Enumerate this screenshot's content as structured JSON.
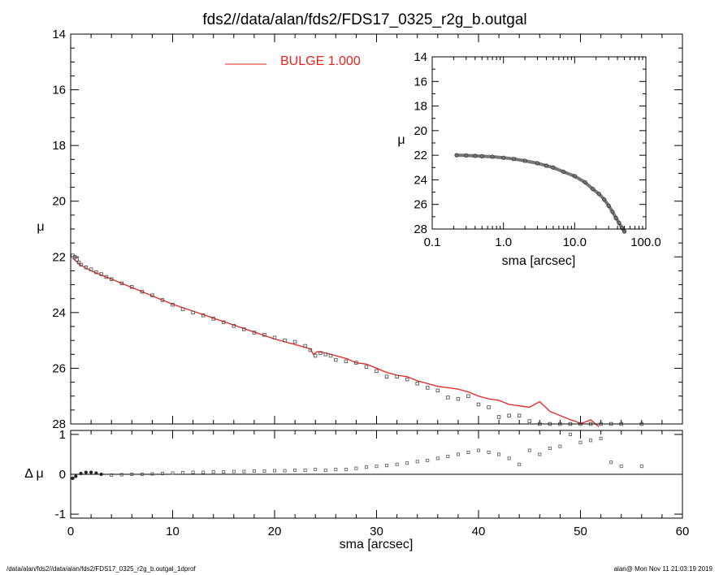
{
  "title": "fds2//data/alan/fds2/FDS17_0325_r2g_b.outgal",
  "footer": {
    "left": "/data/alan/fds2//data/alan/fds2/FDS17_0325_r2g_b.outgal_1dprof",
    "right": "alan@  Mon Nov 11 21:03:19 2019"
  },
  "colors": {
    "model": "#e8231e",
    "data": "#555555",
    "axes": "#000000"
  },
  "chart_data": [
    {
      "id": "main",
      "type": "scatter",
      "xlabel": "sma [arcsec]",
      "ylabel": "μ",
      "xlim": [
        0,
        60
      ],
      "ylim": [
        28,
        14
      ],
      "y_inverted": true,
      "xticks": [
        "0",
        "10",
        "20",
        "30",
        "40",
        "50",
        "60"
      ],
      "yticks": [
        "14",
        "16",
        "18",
        "20",
        "22",
        "24",
        "26",
        "28"
      ],
      "legend": {
        "label": "BULGE  1.000",
        "placement": "top-left",
        "color": "#e8231e"
      },
      "series": [
        {
          "name": "BULGE  1.000",
          "kind": "line",
          "color": "#e8231e",
          "x": [
            0.2,
            1,
            2,
            3,
            4,
            5,
            6,
            8,
            10,
            12,
            14,
            16,
            18,
            20,
            22,
            23.5,
            23.8,
            24.2,
            25,
            26,
            27,
            28,
            29,
            30,
            31,
            32,
            33,
            34,
            35,
            36,
            37,
            38,
            39,
            40,
            41,
            42,
            43,
            44,
            45,
            46,
            47,
            48,
            49,
            49.5,
            50,
            51,
            51.8
          ],
          "y": [
            22.05,
            22.3,
            22.5,
            22.65,
            22.8,
            22.95,
            23.1,
            23.4,
            23.7,
            23.95,
            24.2,
            24.45,
            24.7,
            24.95,
            25.15,
            25.3,
            25.5,
            25.4,
            25.45,
            25.55,
            25.65,
            25.8,
            25.85,
            26.0,
            26.15,
            26.25,
            26.3,
            26.45,
            26.55,
            26.65,
            26.7,
            26.75,
            26.85,
            27.0,
            27.1,
            27.15,
            27.3,
            27.35,
            27.4,
            27.2,
            27.55,
            27.7,
            27.85,
            27.9,
            28.0,
            27.85,
            28.1
          ]
        },
        {
          "name": "",
          "kind": "points",
          "color": "#555555",
          "x": [
            0.2,
            0.4,
            0.6,
            0.8,
            1.0,
            1.5,
            2,
            2.5,
            3,
            3.5,
            4,
            5,
            6,
            7,
            8,
            9,
            10,
            11,
            12,
            13,
            14,
            15,
            16,
            17,
            18,
            19,
            20,
            21,
            22,
            23,
            23.5,
            24,
            24.5,
            25,
            25.5,
            26,
            27,
            28,
            29,
            30,
            31,
            32,
            33,
            34,
            35,
            36,
            37,
            38,
            39,
            40,
            41,
            42,
            43,
            44,
            45,
            46,
            47,
            48,
            49,
            50,
            51,
            52,
            53,
            54,
            56
          ],
          "y": [
            21.95,
            22.0,
            22.1,
            22.2,
            22.28,
            22.38,
            22.45,
            22.55,
            22.62,
            22.72,
            22.8,
            22.95,
            23.08,
            23.25,
            23.38,
            23.55,
            23.72,
            23.88,
            24.0,
            24.1,
            24.22,
            24.35,
            24.48,
            24.6,
            24.72,
            24.8,
            24.9,
            25.0,
            25.05,
            25.2,
            25.35,
            25.55,
            25.45,
            25.5,
            25.55,
            25.7,
            25.75,
            25.8,
            25.95,
            26.1,
            26.3,
            26.3,
            26.4,
            26.55,
            26.7,
            26.8,
            27.05,
            27.1,
            27.0,
            27.3,
            27.4,
            27.75,
            27.7,
            27.7,
            27.9,
            28.0,
            28.0,
            28.0,
            28.0,
            28.0,
            28.0,
            28.0,
            28.0,
            28.0,
            28.0
          ]
        }
      ]
    },
    {
      "id": "residual",
      "type": "scatter",
      "xlabel": "sma [arcsec]",
      "ylabel": "Δ μ",
      "xlim": [
        0,
        60
      ],
      "ylim": [
        -1.1,
        1.1
      ],
      "yticks": [
        "-1",
        "0",
        "1"
      ],
      "series": [
        {
          "name": "",
          "kind": "points",
          "color": "#555555",
          "x": [
            0.2,
            0.5,
            1.0,
            1.5,
            2.0,
            2.5,
            3,
            4,
            5,
            6,
            7,
            8,
            9,
            10,
            11,
            12,
            13,
            14,
            15,
            16,
            17,
            18,
            19,
            20,
            21,
            22,
            23,
            24,
            25,
            26,
            27,
            28,
            29,
            30,
            31,
            32,
            33,
            34,
            35,
            36,
            37,
            38,
            39,
            40,
            41,
            42,
            43,
            44,
            45,
            46,
            47,
            48,
            49,
            50,
            51,
            52,
            53,
            54,
            56
          ],
          "y": [
            -0.1,
            -0.05,
            0.02,
            0.05,
            0.05,
            0.03,
            0.0,
            -0.02,
            -0.01,
            0.0,
            0.0,
            0.01,
            0.02,
            0.03,
            0.04,
            0.05,
            0.05,
            0.06,
            0.06,
            0.07,
            0.07,
            0.08,
            0.08,
            0.09,
            0.09,
            0.1,
            0.1,
            0.12,
            0.1,
            0.12,
            0.12,
            0.15,
            0.18,
            0.2,
            0.22,
            0.25,
            0.28,
            0.32,
            0.35,
            0.4,
            0.45,
            0.5,
            0.55,
            0.6,
            0.55,
            0.5,
            0.4,
            0.25,
            0.6,
            0.5,
            0.65,
            0.7,
            1.0,
            0.8,
            0.85,
            0.9,
            0.3,
            0.2,
            0.2
          ]
        }
      ]
    },
    {
      "id": "inset",
      "type": "scatter",
      "xlabel": "sma [arcsec]",
      "ylabel": "μ",
      "xscale": "log",
      "xlim": [
        0.1,
        100
      ],
      "ylim": [
        28,
        14
      ],
      "y_inverted": true,
      "xticks": [
        "0.1",
        "1.0",
        "10.0",
        "100.0"
      ],
      "yticks": [
        "14",
        "16",
        "18",
        "20",
        "22",
        "24",
        "26",
        "28"
      ],
      "series": [
        {
          "name": "",
          "kind": "points",
          "color": "#555555",
          "x": [
            0.22,
            0.3,
            0.4,
            0.5,
            0.7,
            1.0,
            1.4,
            2.0,
            3.0,
            4.0,
            5.0,
            7.0,
            10.0,
            14.0,
            18.0,
            22.0,
            26.0,
            30.0,
            34.0,
            38.0,
            42.0,
            46.0,
            50.0
          ],
          "y": [
            22.0,
            22.02,
            22.05,
            22.08,
            22.12,
            22.2,
            22.3,
            22.45,
            22.65,
            22.85,
            23.0,
            23.35,
            23.7,
            24.2,
            24.75,
            25.15,
            25.6,
            26.1,
            26.6,
            27.1,
            27.5,
            27.9,
            28.2
          ]
        }
      ]
    }
  ]
}
